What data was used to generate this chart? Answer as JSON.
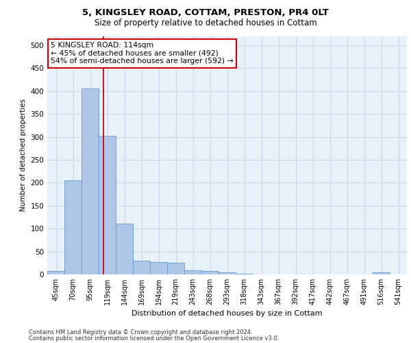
{
  "title_line1": "5, KINGSLEY ROAD, COTTAM, PRESTON, PR4 0LT",
  "title_line2": "Size of property relative to detached houses in Cottam",
  "xlabel": "Distribution of detached houses by size in Cottam",
  "ylabel": "Number of detached properties",
  "categories": [
    "45sqm",
    "70sqm",
    "95sqm",
    "119sqm",
    "144sqm",
    "169sqm",
    "194sqm",
    "219sqm",
    "243sqm",
    "268sqm",
    "293sqm",
    "318sqm",
    "343sqm",
    "367sqm",
    "392sqm",
    "417sqm",
    "442sqm",
    "467sqm",
    "491sqm",
    "516sqm",
    "541sqm"
  ],
  "values": [
    8,
    205,
    405,
    302,
    111,
    30,
    27,
    25,
    9,
    7,
    4,
    1,
    0,
    0,
    0,
    0,
    0,
    0,
    0,
    4,
    0
  ],
  "bar_color": "#aec6e8",
  "bar_edge_color": "#5b9bd5",
  "vline_color": "#cc0000",
  "annotation_text": "5 KINGSLEY ROAD: 114sqm\n← 45% of detached houses are smaller (492)\n54% of semi-detached houses are larger (592) →",
  "annotation_box_color": "#ffffff",
  "annotation_box_edge": "#cc0000",
  "ylim": [
    0,
    520
  ],
  "yticks": [
    0,
    50,
    100,
    150,
    200,
    250,
    300,
    350,
    400,
    450,
    500
  ],
  "grid_color": "#c8d8e8",
  "background_color": "#e8f0f8",
  "footer_line1": "Contains HM Land Registry data © Crown copyright and database right 2024.",
  "footer_line2": "Contains public sector information licensed under the Open Government Licence v3.0."
}
